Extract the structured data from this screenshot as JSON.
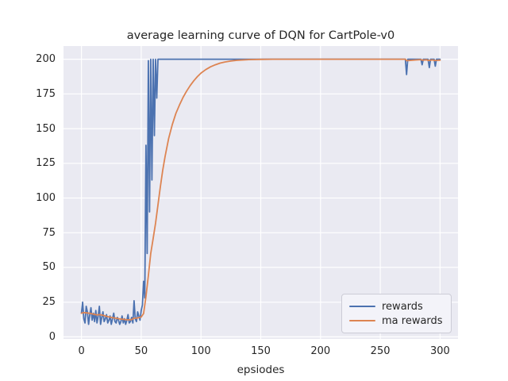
{
  "figure": {
    "background": "#ffffff",
    "text_color": "#262626"
  },
  "chart_data": {
    "type": "line",
    "title": "average learning curve of DQN for CartPole-v0",
    "xlabel": "epsiodes",
    "ylabel": "",
    "xlim": [
      -15,
      315
    ],
    "ylim": [
      -1.5,
      209.5
    ],
    "xticks": [
      0,
      50,
      100,
      150,
      200,
      250,
      300
    ],
    "yticks": [
      0,
      25,
      50,
      75,
      100,
      125,
      150,
      175,
      200
    ],
    "grid": true,
    "grid_color": "#ffffff",
    "plot_background": "#eaeaf2",
    "legend_position": "lower right",
    "series": [
      {
        "name": "rewards",
        "color": "#4c72b0",
        "points": [
          [
            0,
            17
          ],
          [
            1,
            25
          ],
          [
            2,
            13
          ],
          [
            3,
            10
          ],
          [
            4,
            22
          ],
          [
            5,
            18
          ],
          [
            6,
            9
          ],
          [
            7,
            16
          ],
          [
            8,
            21
          ],
          [
            9,
            12
          ],
          [
            10,
            17
          ],
          [
            11,
            11
          ],
          [
            12,
            19
          ],
          [
            13,
            10
          ],
          [
            14,
            15
          ],
          [
            15,
            22
          ],
          [
            16,
            9
          ],
          [
            17,
            14
          ],
          [
            18,
            18
          ],
          [
            19,
            11
          ],
          [
            20,
            13
          ],
          [
            21,
            16
          ],
          [
            22,
            10
          ],
          [
            23,
            12
          ],
          [
            24,
            15
          ],
          [
            25,
            9
          ],
          [
            26,
            13
          ],
          [
            27,
            17
          ],
          [
            28,
            11
          ],
          [
            29,
            10
          ],
          [
            30,
            14
          ],
          [
            31,
            12
          ],
          [
            32,
            9
          ],
          [
            33,
            11
          ],
          [
            34,
            15
          ],
          [
            35,
            10
          ],
          [
            36,
            13
          ],
          [
            37,
            9
          ],
          [
            38,
            12
          ],
          [
            39,
            16
          ],
          [
            40,
            10
          ],
          [
            41,
            11
          ],
          [
            42,
            14
          ],
          [
            43,
            10
          ],
          [
            44,
            26
          ],
          [
            45,
            13
          ],
          [
            46,
            11
          ],
          [
            47,
            18
          ],
          [
            48,
            15
          ],
          [
            49,
            12
          ],
          [
            50,
            19
          ],
          [
            51,
            23
          ],
          [
            52,
            40
          ],
          [
            53,
            28
          ],
          [
            54,
            138
          ],
          [
            55,
            60
          ],
          [
            56,
            199
          ],
          [
            57,
            90
          ],
          [
            58,
            200
          ],
          [
            59,
            113
          ],
          [
            60,
            200
          ],
          [
            61,
            145
          ],
          [
            62,
            200
          ],
          [
            63,
            172
          ],
          [
            64,
            200
          ],
          [
            66,
            200
          ],
          [
            271,
            200
          ],
          [
            272,
            189
          ],
          [
            273,
            200
          ],
          [
            284,
            200
          ],
          [
            285,
            196
          ],
          [
            286,
            200
          ],
          [
            290,
            200
          ],
          [
            291,
            194
          ],
          [
            292,
            200
          ],
          [
            295,
            200
          ],
          [
            296,
            195
          ],
          [
            297,
            200
          ],
          [
            300,
            200
          ]
        ]
      },
      {
        "name": "ma rewards",
        "color": "#dd8452",
        "points": [
          [
            0,
            17
          ],
          [
            2,
            17.5
          ],
          [
            5,
            17.2
          ],
          [
            8,
            16.8
          ],
          [
            10,
            16.4
          ],
          [
            13,
            15.8
          ],
          [
            15,
            16.0
          ],
          [
            18,
            15.6
          ],
          [
            20,
            15.0
          ],
          [
            23,
            14.4
          ],
          [
            26,
            13.8
          ],
          [
            29,
            13.4
          ],
          [
            32,
            12.9
          ],
          [
            35,
            12.6
          ],
          [
            38,
            12.3
          ],
          [
            40,
            12.3
          ],
          [
            42,
            12.4
          ],
          [
            44,
            13.5
          ],
          [
            46,
            13.4
          ],
          [
            48,
            13.9
          ],
          [
            50,
            14.3
          ],
          [
            52,
            16.8
          ],
          [
            54,
            29
          ],
          [
            56,
            44
          ],
          [
            58,
            60
          ],
          [
            60,
            71
          ],
          [
            62,
            82
          ],
          [
            64,
            95
          ],
          [
            66,
            108
          ],
          [
            68,
            120
          ],
          [
            70,
            130
          ],
          [
            73,
            143
          ],
          [
            76,
            153
          ],
          [
            79,
            161
          ],
          [
            82,
            167
          ],
          [
            85,
            172.5
          ],
          [
            88,
            177
          ],
          [
            91,
            181
          ],
          [
            94,
            184.5
          ],
          [
            97,
            187.5
          ],
          [
            100,
            190
          ],
          [
            104,
            192.5
          ],
          [
            108,
            194.5
          ],
          [
            112,
            196
          ],
          [
            116,
            197.2
          ],
          [
            120,
            198
          ],
          [
            125,
            198.7
          ],
          [
            130,
            199.2
          ],
          [
            140,
            199.7
          ],
          [
            150,
            199.9
          ],
          [
            160,
            200
          ],
          [
            271,
            200
          ],
          [
            272,
            198.9
          ],
          [
            276,
            199.2
          ],
          [
            280,
            199.5
          ],
          [
            284,
            199.7
          ],
          [
            285,
            199.3
          ],
          [
            289,
            199.6
          ],
          [
            290,
            199.1
          ],
          [
            294,
            199.5
          ],
          [
            295,
            199.1
          ],
          [
            298,
            199.2
          ],
          [
            300,
            199.3
          ]
        ]
      }
    ]
  }
}
